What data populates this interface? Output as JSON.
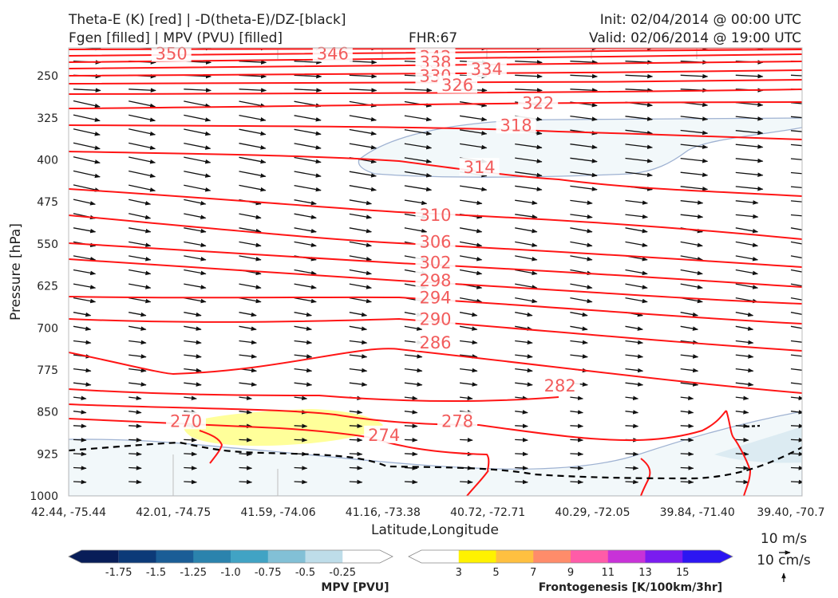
{
  "header": {
    "left_line1": "Theta-E (K) [red] | -D(theta-E)/DZ-[black]",
    "left_line2": "Fgen [filled] | MPV (PVU) [filled]",
    "center": "FHR:67",
    "right_line1": "Init: 02/04/2014 @ 00:00 UTC",
    "right_line2": "Valid: 02/06/2014 @ 19:00 UTC"
  },
  "chart_data": {
    "type": "cross-section",
    "xlabel": "Latitude,Longitude",
    "ylabel": "Pressure [hPa]",
    "ylim": [
      1000,
      200
    ],
    "y_ticks": [
      250,
      325,
      400,
      475,
      550,
      625,
      700,
      775,
      850,
      925,
      1000
    ],
    "x_ticks": [
      "42.44, -75.44",
      "42.01, -74.75",
      "41.59, -74.06",
      "41.16, -73.38",
      "40.72, -72.71",
      "40.29, -72.05",
      "39.84, -71.40",
      "39.40, -70.7"
    ],
    "theta_e_labels": [
      {
        "value": "350",
        "x": 0.14,
        "p": 212
      },
      {
        "value": "346",
        "x": 0.36,
        "p": 212
      },
      {
        "value": "342",
        "x": 0.5,
        "p": 218
      },
      {
        "value": "338",
        "x": 0.5,
        "p": 228
      },
      {
        "value": "334",
        "x": 0.57,
        "p": 240
      },
      {
        "value": "330",
        "x": 0.5,
        "p": 252
      },
      {
        "value": "326",
        "x": 0.53,
        "p": 268
      },
      {
        "value": "322",
        "x": 0.64,
        "p": 300
      },
      {
        "value": "318",
        "x": 0.61,
        "p": 340
      },
      {
        "value": "314",
        "x": 0.56,
        "p": 415
      },
      {
        "value": "310",
        "x": 0.5,
        "p": 500
      },
      {
        "value": "306",
        "x": 0.5,
        "p": 548
      },
      {
        "value": "302",
        "x": 0.5,
        "p": 585
      },
      {
        "value": "298",
        "x": 0.5,
        "p": 617
      },
      {
        "value": "294",
        "x": 0.5,
        "p": 648
      },
      {
        "value": "290",
        "x": 0.5,
        "p": 686
      },
      {
        "value": "286",
        "x": 0.5,
        "p": 728
      },
      {
        "value": "282",
        "x": 0.67,
        "p": 805
      },
      {
        "value": "278",
        "x": 0.53,
        "p": 868
      },
      {
        "value": "274",
        "x": 0.43,
        "p": 893
      },
      {
        "value": "270",
        "x": 0.16,
        "p": 868
      }
    ],
    "mpv_colorbar": {
      "label": "MPV [PVU]",
      "ticks": [
        "-1.75",
        "-1.5",
        "-1.25",
        "-1.0",
        "-0.75",
        "-0.5",
        "-0.25"
      ],
      "colors": [
        "#081d58",
        "#0c3a78",
        "#1a5d96",
        "#2b83ad",
        "#41a3c4",
        "#82c0d6",
        "#bedde9",
        "#ffffff"
      ]
    },
    "fgen_colorbar": {
      "label": "Frontogenesis [K/100km/3hr]",
      "ticks": [
        "3",
        "5",
        "7",
        "9",
        "11",
        "13",
        "15"
      ],
      "colors": [
        "#ffffff",
        "#fff200",
        "#ffc040",
        "#ff8c6a",
        "#ff5ca8",
        "#c832d8",
        "#7a1cf0",
        "#2c16f2"
      ]
    },
    "vector_key": {
      "label1": "10 m/s",
      "label2": "10 cm/s"
    }
  }
}
